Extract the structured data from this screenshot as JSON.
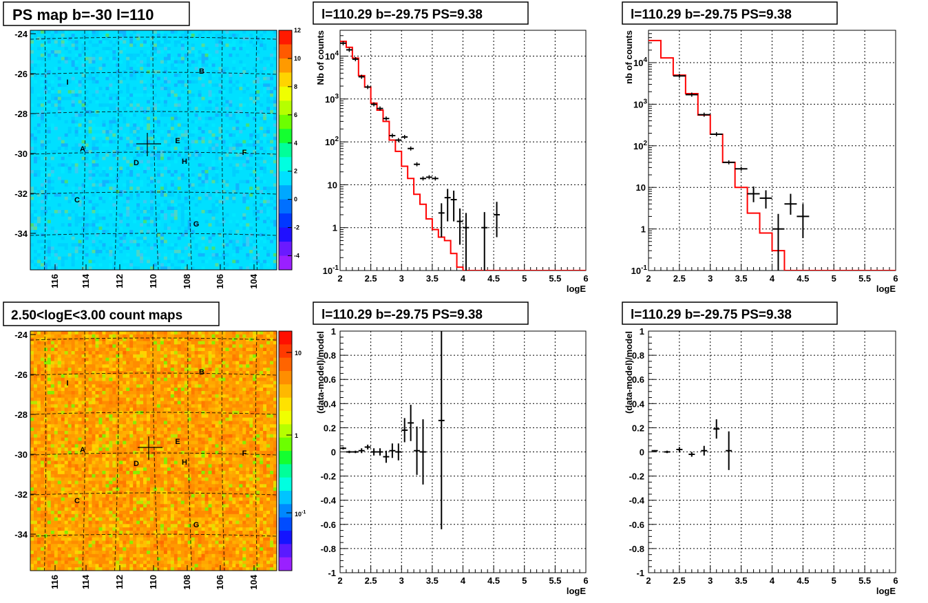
{
  "chart_data": [
    {
      "type": "heatmap",
      "title": "PS map b=-30 l=110",
      "x_ticks": [
        "116",
        "114",
        "112",
        "110",
        "108",
        "106",
        "104"
      ],
      "y_ticks": [
        "-24",
        "-26",
        "-28",
        "-30",
        "-32",
        "-34"
      ],
      "colorbar_ticks": [
        "12",
        "10",
        "8",
        "6",
        "4",
        "2",
        "0",
        "-2",
        "-4"
      ],
      "colorbar_range": [
        -5,
        12
      ],
      "sources": [
        "A",
        "B",
        "C",
        "D",
        "E",
        "F",
        "G",
        "H",
        "I"
      ],
      "marker": "+ at l=110.29 b=-29.75"
    },
    {
      "type": "line",
      "title": "l=110.29 b=-29.75 PS=9.38",
      "xlabel": "logE",
      "ylabel": "Nb of counts",
      "x_ticks": [
        "2",
        "2.5",
        "3",
        "3.5",
        "4",
        "4.5",
        "5",
        "5.5",
        "6"
      ],
      "y_ticks": [
        "10",
        "1",
        "10"
      ],
      "y_tick_exps": [
        "4",
        "3",
        "2",
        "",
        "",
        "-1"
      ],
      "y_scale": "log",
      "xlim": [
        2,
        6
      ],
      "ylim": [
        0.1,
        40000
      ],
      "model_step": {
        "edges": [
          2.0,
          2.1,
          2.2,
          2.3,
          2.4,
          2.5,
          2.6,
          2.7,
          2.8,
          2.9,
          3.0,
          3.1,
          3.2,
          3.3,
          3.4,
          3.5,
          3.6,
          3.7,
          3.8,
          3.9,
          4.0,
          4.1,
          4.2,
          4.3,
          6.0
        ],
        "values": [
          22000,
          16000,
          9000,
          3500,
          1900,
          800,
          550,
          300,
          110,
          60,
          27,
          14,
          6,
          3.5,
          1.6,
          0.9,
          0.6,
          0.5,
          0.25,
          0.12,
          0.1,
          0.1,
          0.1,
          0.1
        ]
      },
      "data_points": {
        "x": [
          2.05,
          2.15,
          2.25,
          2.35,
          2.45,
          2.55,
          2.65,
          2.75,
          2.85,
          2.95,
          3.05,
          3.15,
          3.25,
          3.35,
          3.45,
          3.55,
          3.65,
          3.75,
          3.85,
          3.95,
          4.05,
          4.35,
          4.55
        ],
        "y": [
          20000,
          14000,
          8500,
          3300,
          1900,
          750,
          600,
          350,
          140,
          110,
          130,
          70,
          30,
          14,
          15,
          14,
          2.2,
          5,
          4.5,
          1.4,
          1,
          1,
          2
        ],
        "err_low": [
          0,
          0,
          0,
          0,
          0,
          0,
          0,
          0,
          0,
          0,
          0,
          0,
          0,
          0,
          0,
          0,
          1.6,
          3.6,
          3.1,
          1.0,
          0.999,
          0.999,
          1.4
        ],
        "err_high": [
          0,
          0,
          0,
          0,
          0,
          0,
          0,
          0,
          0,
          0,
          0,
          0,
          0,
          0,
          0,
          0,
          1.5,
          3.0,
          2.8,
          1.4,
          1.2,
          1.3,
          2.0
        ]
      }
    },
    {
      "type": "line",
      "title": "l=110.29 b=-29.75 PS=9.38",
      "xlabel": "logE",
      "ylabel": "nb of counts",
      "x_ticks": [
        "2",
        "2.5",
        "3",
        "3.5",
        "4",
        "4.5",
        "5",
        "5.5",
        "6"
      ],
      "y_ticks": [
        "10",
        "1",
        "10"
      ],
      "y_tick_exps": [
        "4",
        "3",
        "2",
        "",
        "",
        "-1"
      ],
      "y_scale": "log",
      "xlim": [
        2,
        6
      ],
      "ylim": [
        0.1,
        60000
      ],
      "model_step": {
        "edges": [
          2.0,
          2.2,
          2.4,
          2.6,
          2.8,
          3.0,
          3.2,
          3.4,
          3.6,
          3.8,
          4.0,
          4.2,
          6.0
        ],
        "values": [
          34000,
          13000,
          5000,
          1800,
          550,
          190,
          40,
          10,
          2.4,
          0.8,
          0.3,
          0.1
        ]
      },
      "data_points": {
        "x": [
          2.5,
          2.7,
          2.9,
          3.1,
          3.3,
          3.5,
          3.7,
          3.9,
          4.1,
          4.3,
          4.5
        ],
        "y": [
          4800,
          1700,
          560,
          190,
          40,
          28,
          7,
          5.5,
          1,
          4,
          2
        ],
        "err_low": [
          0,
          0,
          0,
          0,
          0,
          0,
          2.6,
          2.4,
          0.999,
          1.8,
          1.4
        ],
        "err_high": [
          0,
          0,
          0,
          0,
          0,
          0,
          3.5,
          3.0,
          1.3,
          3.0,
          2.0
        ]
      }
    },
    {
      "type": "heatmap",
      "title": "2.50<logE<3.00 count maps",
      "x_ticks": [
        "116",
        "114",
        "112",
        "110",
        "108",
        "106",
        "104"
      ],
      "y_ticks": [
        "-24",
        "-26",
        "-28",
        "-30",
        "-32",
        "-34"
      ],
      "colorbar_ticks": [
        "10",
        "1"
      ],
      "colorbar_exp_tick": {
        "base": "10",
        "exp": "-1"
      },
      "colorbar_scale": "log",
      "sources": [
        "A",
        "B",
        "C",
        "D",
        "E",
        "F",
        "G",
        "H",
        "I"
      ],
      "marker": "+ at l=110.29 b=-29.75"
    },
    {
      "type": "scatter",
      "title": "l=110.29 b=-29.75 PS=9.38",
      "xlabel": "logE",
      "ylabel": "(data-model)/model",
      "x_ticks": [
        "2",
        "2.5",
        "3",
        "3.5",
        "4",
        "4.5",
        "5",
        "5.5",
        "6"
      ],
      "y_ticks": [
        "1",
        "0.8",
        "0.6",
        "0.4",
        "0.2",
        "0",
        "-0.2",
        "-0.4",
        "-0.6",
        "-0.8",
        "-1"
      ],
      "xlim": [
        2,
        6
      ],
      "ylim": [
        -1,
        1
      ],
      "data_points": {
        "x": [
          2.05,
          2.15,
          2.25,
          2.35,
          2.45,
          2.55,
          2.65,
          2.75,
          2.85,
          2.95,
          3.05,
          3.15,
          3.25,
          3.35,
          3.65
        ],
        "y": [
          0.03,
          0.0,
          0.0,
          0.01,
          0.04,
          0.0,
          0.0,
          -0.04,
          0.01,
          0.0,
          0.18,
          0.24,
          0.01,
          0.0,
          0.26
        ],
        "err": [
          0.01,
          0.01,
          0.01,
          0.02,
          0.02,
          0.03,
          0.03,
          0.05,
          0.06,
          0.07,
          0.1,
          0.15,
          0.2,
          0.27,
          0.9
        ]
      }
    },
    {
      "type": "scatter",
      "title": "l=110.29 b=-29.75 PS=9.38",
      "xlabel": "logE",
      "ylabel": "(data-model)/model",
      "x_ticks": [
        "2",
        "2.5",
        "3",
        "3.5",
        "4",
        "4.5",
        "5",
        "5.5",
        "6"
      ],
      "y_ticks": [
        "1",
        "0.8",
        "0.6",
        "0.4",
        "0.2",
        "0",
        "-0.2",
        "-0.4",
        "-0.6",
        "-0.8",
        "-1"
      ],
      "xlim": [
        2,
        6
      ],
      "ylim": [
        -1,
        1
      ],
      "data_points": {
        "x": [
          2.1,
          2.3,
          2.5,
          2.7,
          2.9,
          3.1,
          3.3
        ],
        "y": [
          0.01,
          0.0,
          0.02,
          -0.02,
          0.01,
          0.19,
          0.01
        ],
        "err": [
          0.005,
          0.01,
          0.02,
          0.02,
          0.04,
          0.08,
          0.16
        ]
      }
    }
  ]
}
